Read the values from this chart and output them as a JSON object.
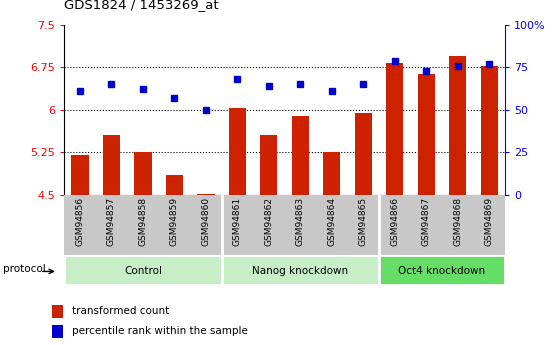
{
  "title": "GDS1824 / 1453269_at",
  "samples": [
    "GSM94856",
    "GSM94857",
    "GSM94858",
    "GSM94859",
    "GSM94860",
    "GSM94861",
    "GSM94862",
    "GSM94863",
    "GSM94864",
    "GSM94865",
    "GSM94866",
    "GSM94867",
    "GSM94868",
    "GSM94869"
  ],
  "transformed_count": [
    5.2,
    5.55,
    5.25,
    4.85,
    4.52,
    6.03,
    5.55,
    5.9,
    5.25,
    5.95,
    6.82,
    6.63,
    6.95,
    6.77
  ],
  "percentile_rank": [
    61,
    65,
    62,
    57,
    50,
    68,
    64,
    65,
    61,
    65,
    79,
    73,
    76,
    77
  ],
  "bar_color": "#cc2200",
  "dot_color": "#0000cc",
  "left_ylim": [
    4.5,
    7.5
  ],
  "left_yticks": [
    4.5,
    5.25,
    6.0,
    6.75,
    7.5
  ],
  "left_yticklabels": [
    "4.5",
    "5.25",
    "6",
    "6.75",
    "7.5"
  ],
  "right_ylim": [
    0,
    100
  ],
  "right_yticks": [
    0,
    25,
    50,
    75,
    100
  ],
  "right_yticklabels": [
    "0",
    "25",
    "50",
    "75",
    "100%"
  ],
  "hgrid_vals": [
    5.25,
    6.0,
    6.75
  ],
  "groups": [
    {
      "label": "Control",
      "start": 0,
      "end": 5,
      "color": "#c8eec8"
    },
    {
      "label": "Nanog knockdown",
      "start": 5,
      "end": 10,
      "color": "#c8eec8"
    },
    {
      "label": "Oct4 knockdown",
      "start": 10,
      "end": 14,
      "color": "#66dd66"
    }
  ],
  "group_separators": [
    4.5,
    9.5
  ],
  "tick_bg_color": "#c8c8c8",
  "legend_items": [
    {
      "label": "transformed count",
      "color": "#cc2200"
    },
    {
      "label": "percentile rank within the sample",
      "color": "#0000cc"
    }
  ],
  "protocol_label": "protocol"
}
